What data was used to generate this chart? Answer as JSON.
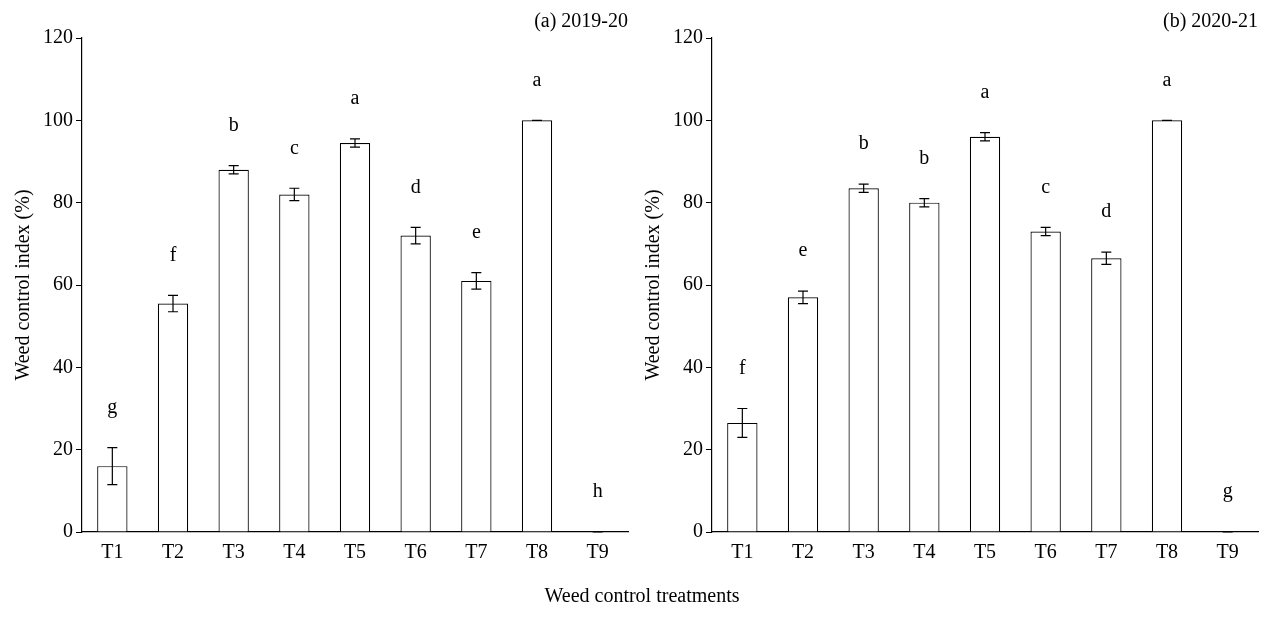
{
  "chart_data": [
    {
      "type": "bar",
      "title": "(a) 2019-20",
      "xlabel": "Weed control treatments",
      "ylabel": "Weed control index (%)",
      "categories": [
        "T1",
        "T2",
        "T3",
        "T4",
        "T5",
        "T6",
        "T7",
        "T8",
        "T9"
      ],
      "color": "#ffffff",
      "values": [
        16,
        55.5,
        88,
        82,
        94.5,
        72,
        61,
        100,
        0
      ],
      "errors": [
        4.5,
        2,
        1,
        1.5,
        1,
        2,
        2,
        0,
        0
      ],
      "ylim": [
        0,
        120
      ],
      "yticks": [
        0,
        20,
        40,
        60,
        80,
        100,
        120
      ],
      "grid": false,
      "legend": false,
      "annotations": [
        "g",
        "f",
        "b",
        "c",
        "a",
        "d",
        "e",
        "a",
        "h"
      ]
    },
    {
      "type": "bar",
      "title": "(b) 2020-21",
      "ylabel": "Weed control index (%)",
      "categories": [
        "T1",
        "T2",
        "T3",
        "T4",
        "T5",
        "T6",
        "T7",
        "T8",
        "T9"
      ],
      "color": "#ffffff",
      "values": [
        26.5,
        57,
        83.5,
        80,
        96,
        73,
        66.5,
        100,
        0
      ],
      "errors": [
        3.5,
        1.5,
        1,
        1,
        1,
        1,
        1.5,
        0,
        0
      ],
      "ylim": [
        0,
        120
      ],
      "yticks": [
        0,
        20,
        40,
        60,
        80,
        100,
        120
      ],
      "grid": false,
      "legend": false,
      "annotations": [
        "f",
        "e",
        "b",
        "b",
        "a",
        "c",
        "d",
        "a",
        "g"
      ]
    }
  ]
}
